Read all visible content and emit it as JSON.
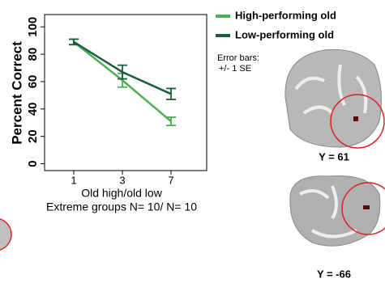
{
  "chart_data": {
    "type": "line",
    "y_label": "Percent Correct",
    "x_label": "Old high/old low",
    "subtitle": "Extreme groups N= 10/ N= 10",
    "annotation": [
      "Error bars:",
      "+/- 1 SE"
    ],
    "categories": [
      "1",
      "3",
      "7"
    ],
    "series": [
      {
        "name": "High-performing old",
        "color": "#4caf50",
        "values": [
          89,
          61,
          31
        ],
        "errors": [
          2,
          5,
          3
        ]
      },
      {
        "name": "Low-performing old",
        "color": "#1b5e3b",
        "values": [
          89,
          67,
          51
        ],
        "errors": [
          2,
          5,
          4
        ]
      }
    ],
    "ylim": [
      -5,
      109
    ],
    "yticks": [
      0,
      20,
      40,
      60,
      80,
      100
    ]
  },
  "images": [
    {
      "label": "Y = 61"
    },
    {
      "label": "Y = -66"
    }
  ]
}
